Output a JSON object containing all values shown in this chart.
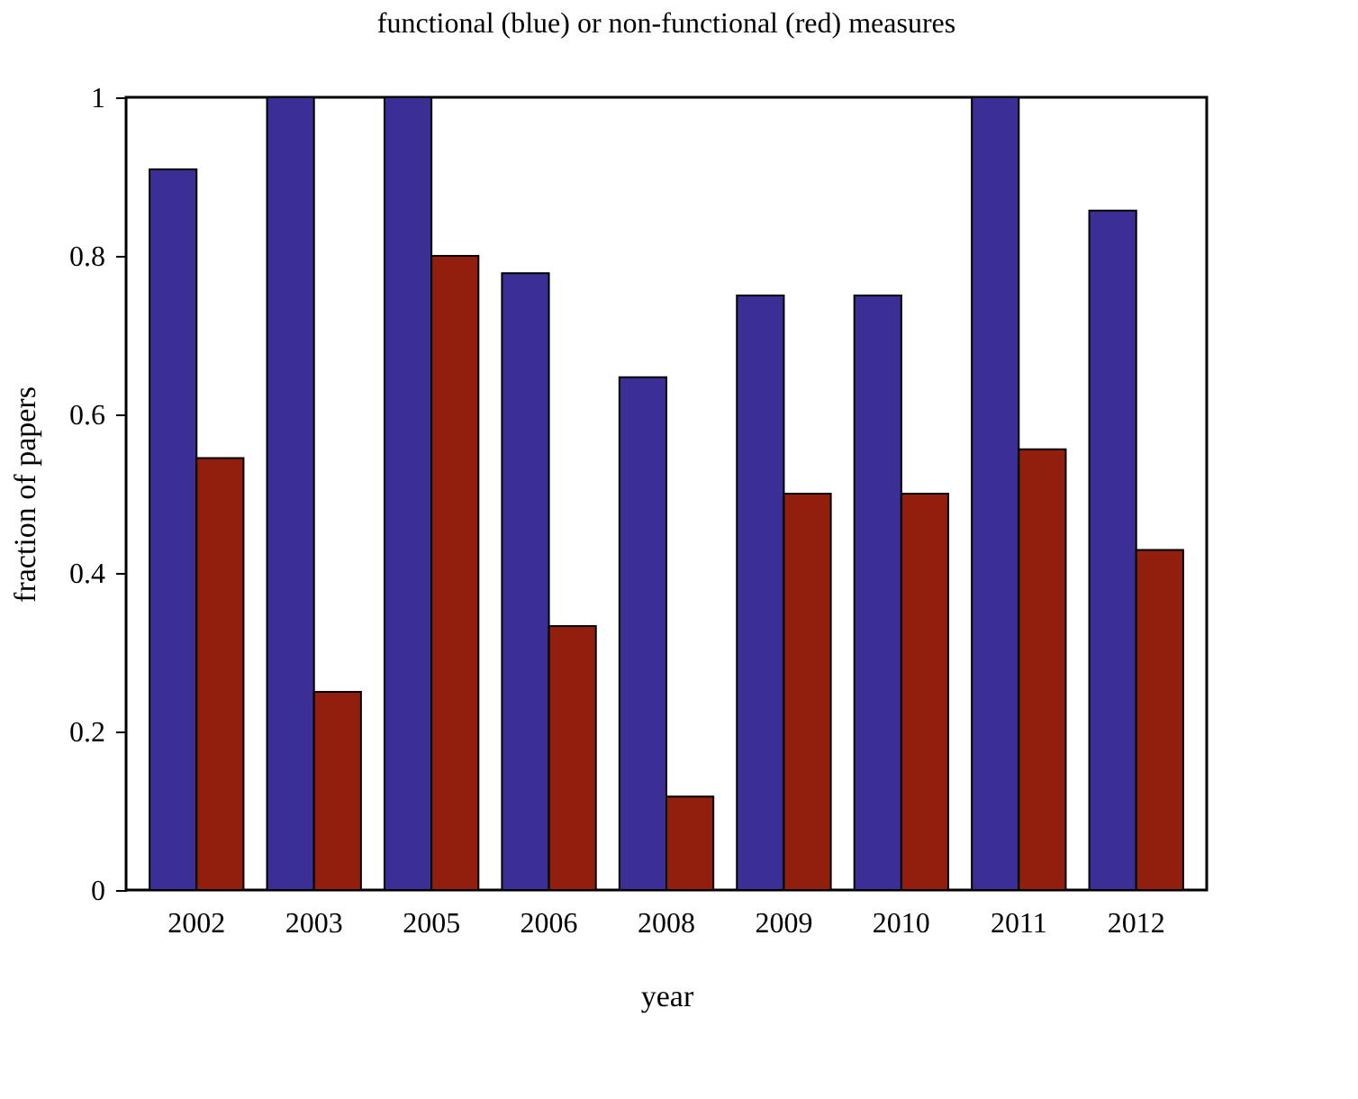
{
  "chart_data": {
    "type": "bar",
    "title": "functional (blue) or non-functional (red) measures",
    "xlabel": "year",
    "ylabel": "fraction of papers",
    "categories": [
      "2002",
      "2003",
      "2005",
      "2006",
      "2008",
      "2009",
      "2010",
      "2011",
      "2012"
    ],
    "series": [
      {
        "color": "#3b2f95",
        "values": [
          0.909,
          1,
          1,
          0.778,
          0.647,
          0.75,
          0.75,
          1,
          0.857
        ]
      },
      {
        "color": "#921e0e",
        "values": [
          0.545,
          0.25,
          0.8,
          0.333,
          0.118,
          0.5,
          0.5,
          0.556,
          0.429
        ]
      }
    ],
    "ylim": [
      0,
      1
    ],
    "yticks": [
      0,
      0.2,
      0.4,
      0.6,
      0.8,
      1
    ],
    "grid": false
  }
}
